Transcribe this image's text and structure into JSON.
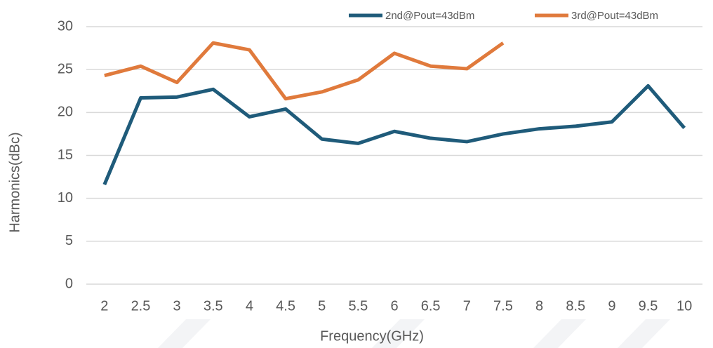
{
  "chart_data": {
    "type": "line",
    "x_label": "Frequency(GHz)",
    "y_label": "Harmonics(dBc)",
    "categories": [
      "2",
      "2.5",
      "3",
      "3.5",
      "4",
      "4.5",
      "5",
      "5.5",
      "6",
      "6.5",
      "7",
      "7.5",
      "8",
      "8.5",
      "9",
      "9.5",
      "10"
    ],
    "series": [
      {
        "name": "2nd@Pout=43dBm",
        "color": "#1f5b7a",
        "values": [
          11.6,
          21.7,
          21.8,
          22.7,
          19.5,
          20.4,
          16.9,
          16.4,
          17.8,
          17.0,
          16.6,
          17.5,
          18.1,
          18.4,
          18.9,
          23.1,
          18.2
        ]
      },
      {
        "name": "3rd@Pout=43dBm",
        "color": "#e07a3c",
        "values": [
          24.3,
          25.4,
          23.5,
          28.1,
          27.3,
          21.6,
          22.4,
          23.8,
          26.9,
          25.4,
          25.1,
          28.1,
          null,
          null,
          null,
          null,
          null
        ]
      }
    ],
    "ylim": [
      0,
      30
    ],
    "yticks": [
      0,
      5,
      10,
      15,
      20,
      25,
      30
    ],
    "grid": true,
    "legend": "top-right"
  }
}
